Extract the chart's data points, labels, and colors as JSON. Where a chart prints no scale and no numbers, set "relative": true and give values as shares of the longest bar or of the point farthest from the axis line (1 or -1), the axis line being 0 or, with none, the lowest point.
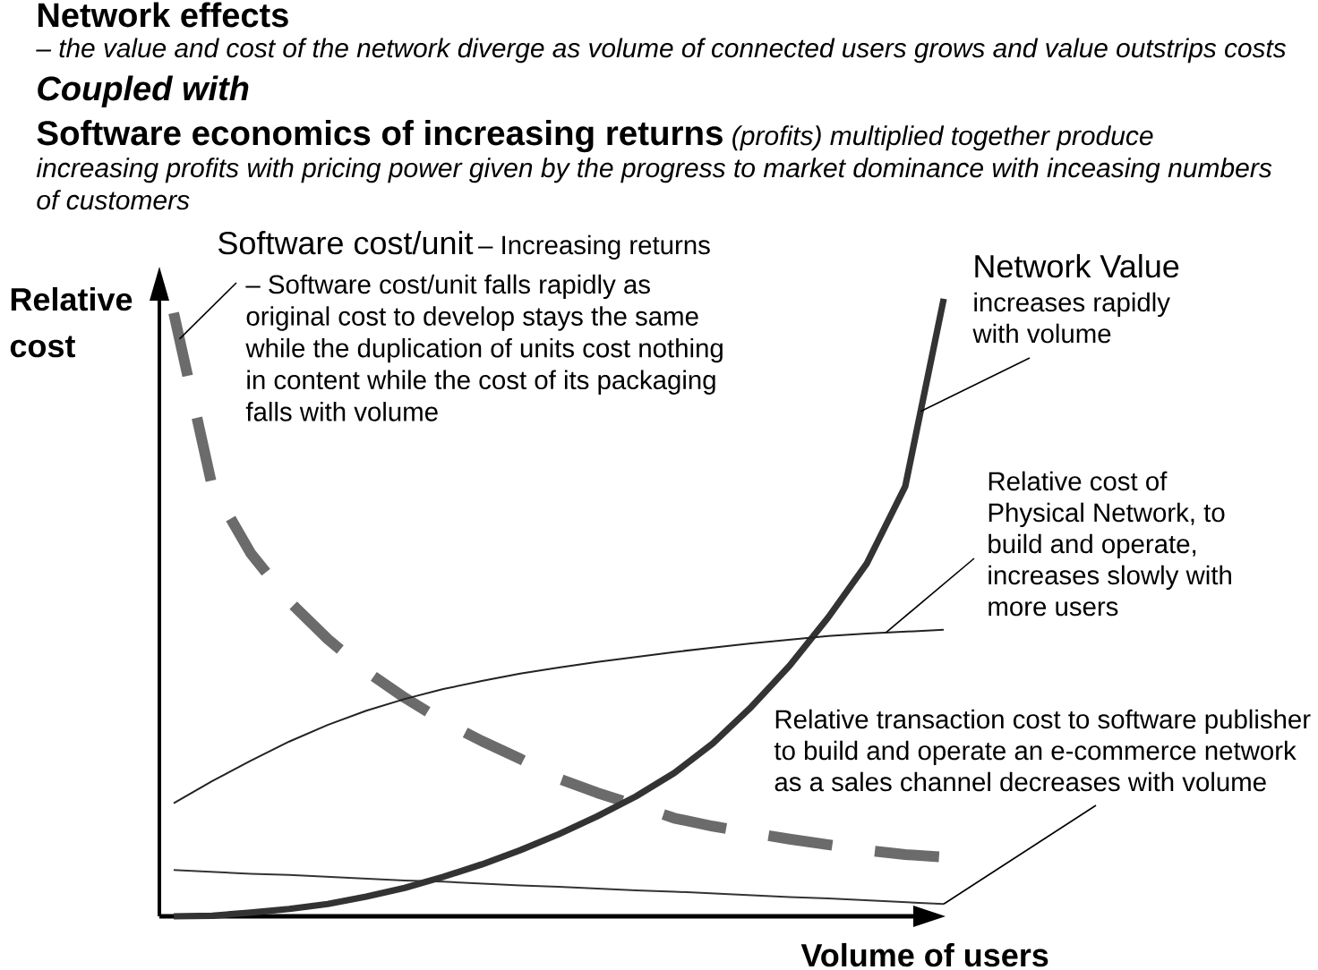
{
  "chart_data": {
    "type": "line",
    "title": "Network effects",
    "subtitle": "– the value and cost of the network diverge as volume of connected users grows and value outstrips costs",
    "xlabel": "Volume of users",
    "ylabel": "Relative cost",
    "relative": true,
    "categories": [
      null,
      null,
      null,
      null,
      null,
      null,
      null,
      null,
      null,
      null,
      null,
      null,
      null,
      null,
      null,
      null,
      null,
      null,
      null,
      null,
      null
    ],
    "series": [
      {
        "name": "Software cost/unit",
        "color": "#6b6b6b",
        "line_style": "dashed",
        "values": [
          0.977,
          0.696,
          0.588,
          0.51,
          0.449,
          0.397,
          0.354,
          0.316,
          0.284,
          0.255,
          0.223,
          0.2,
          0.18,
          0.159,
          0.146,
          0.135,
          0.125,
          0.116,
          0.107,
          0.1,
          0.096
        ]
      },
      {
        "name": "Network Value",
        "color": "#333333",
        "line_style": "solid",
        "values": [
          0,
          0.001,
          0.006,
          0.012,
          0.02,
          0.032,
          0.046,
          0.064,
          0.084,
          0.107,
          0.133,
          0.162,
          0.194,
          0.232,
          0.28,
          0.339,
          0.406,
          0.484,
          0.571,
          0.696,
          1
        ]
      },
      {
        "color": "#222222",
        "line_style": "solid",
        "values": [
          0.183,
          0.219,
          0.252,
          0.283,
          0.31,
          0.333,
          0.352,
          0.368,
          0.381,
          0.393,
          0.403,
          0.412,
          0.42,
          0.428,
          0.435,
          0.442,
          0.448,
          0.454,
          0.458,
          0.461,
          0.464
        ]
      },
      {
        "color": "#333333",
        "line_style": "solid",
        "values": [
          0.075,
          0.072,
          0.069,
          0.067,
          0.064,
          0.061,
          0.058,
          0.056,
          0.053,
          0.05,
          0.048,
          0.045,
          0.042,
          0.04,
          0.037,
          0.034,
          0.031,
          0.029,
          0.026,
          0.023,
          0.02
        ]
      }
    ],
    "annotations": [
      "Coupled with",
      "Software economics of increasing returns",
      "(profits) multiplied together produce increasing profits with pricing power given by the progress to market dominance with inceasing numbers of customers",
      "– Increasing returns",
      "– Software cost/unit falls rapidly as original cost to develop stays the same while the duplication of units cost nothing in content while the cost of its packaging falls with volume",
      "increases rapidly with volume",
      "Relative cost of Physical Network, to build and operate, increases slowly with more users",
      "Relative transaction cost to software publisher to build and operate an e-commerce network as a sales channel decreases with volume"
    ]
  }
}
